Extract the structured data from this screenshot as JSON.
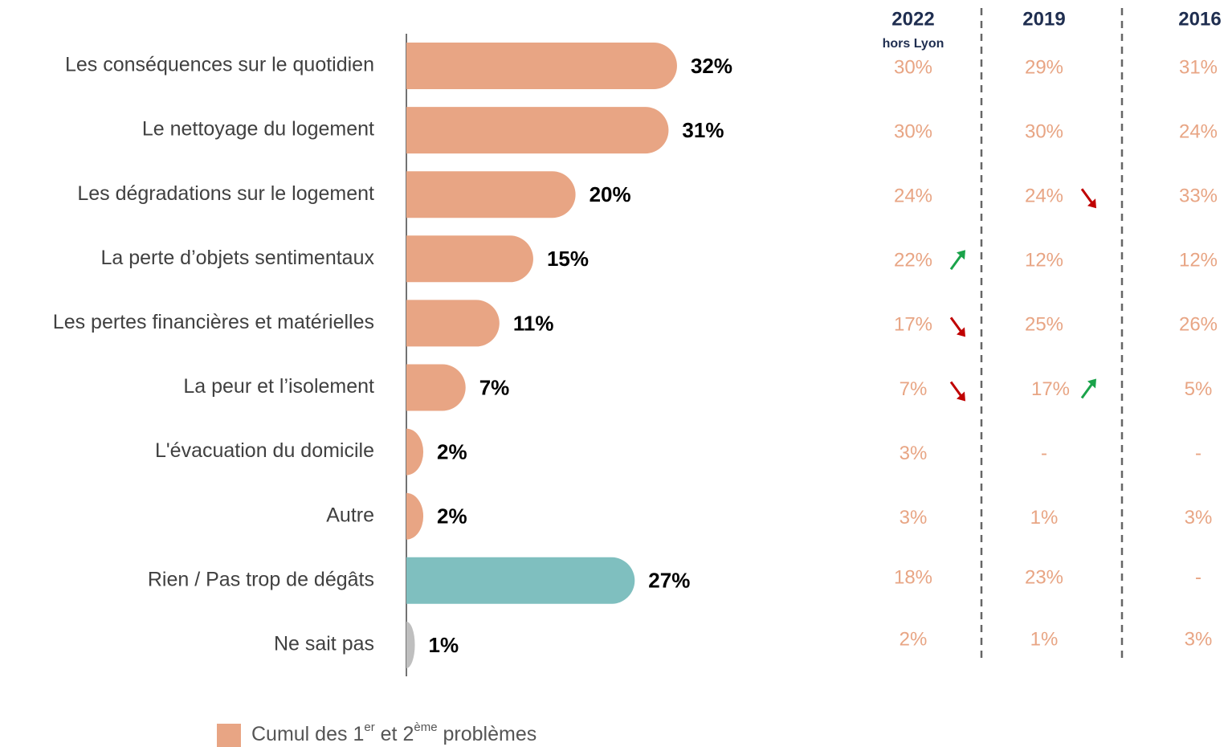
{
  "chart_data": {
    "type": "bar",
    "orientation": "horizontal",
    "categories": [
      "Les conséquences sur le quotidien",
      "Le nettoyage du logement",
      "Les dégradations sur le logement",
      "La perte d’objets sentimentaux",
      "Les pertes financières et matérielles",
      "La peur et l’isolement",
      "L'évacuation du domicile",
      "Autre",
      "Rien / Pas trop de dégâts",
      "Ne sait pas"
    ],
    "values": [
      32,
      31,
      20,
      15,
      11,
      7,
      2,
      2,
      27,
      1
    ],
    "value_labels": [
      "32%",
      "31%",
      "20%",
      "15%",
      "11%",
      "7%",
      "2%",
      "2%",
      "27%",
      "1%"
    ],
    "colors": [
      "#e8a584",
      "#e8a584",
      "#e8a584",
      "#e8a584",
      "#e8a584",
      "#e8a584",
      "#e8a584",
      "#e8a584",
      "#7fbfbf",
      "#bfbfbf"
    ],
    "legend": {
      "color": "#e8a584",
      "parts": [
        "Cumul des 1",
        "er",
        " et 2",
        "ème",
        " problèmes"
      ]
    }
  },
  "comparison": {
    "columns": [
      {
        "year": "2022",
        "note": "hors Lyon"
      },
      {
        "year": "2019"
      },
      {
        "year": "2016"
      }
    ],
    "rows": [
      [
        "30%",
        "29%",
        "31%"
      ],
      [
        "30%",
        "30%",
        "24%"
      ],
      [
        "24%",
        "24%",
        "33%"
      ],
      [
        "22%",
        "12%",
        "12%"
      ],
      [
        "17%",
        "25%",
        "26%"
      ],
      [
        "7%",
        "17%",
        "5%"
      ],
      [
        "3%",
        "-",
        "-"
      ],
      [
        "3%",
        "1%",
        "3%"
      ],
      [
        "18%",
        "23%",
        "-"
      ],
      [
        "2%",
        "1%",
        "3%"
      ]
    ],
    "trends": [
      [
        null,
        null,
        null
      ],
      [
        null,
        null,
        null
      ],
      [
        null,
        "down",
        null
      ],
      [
        "up",
        null,
        null
      ],
      [
        "down",
        null,
        null
      ],
      [
        "down",
        "up",
        null
      ],
      [
        null,
        null,
        null
      ],
      [
        null,
        null,
        null
      ],
      [
        null,
        null,
        null
      ],
      [
        null,
        null,
        null
      ]
    ]
  }
}
